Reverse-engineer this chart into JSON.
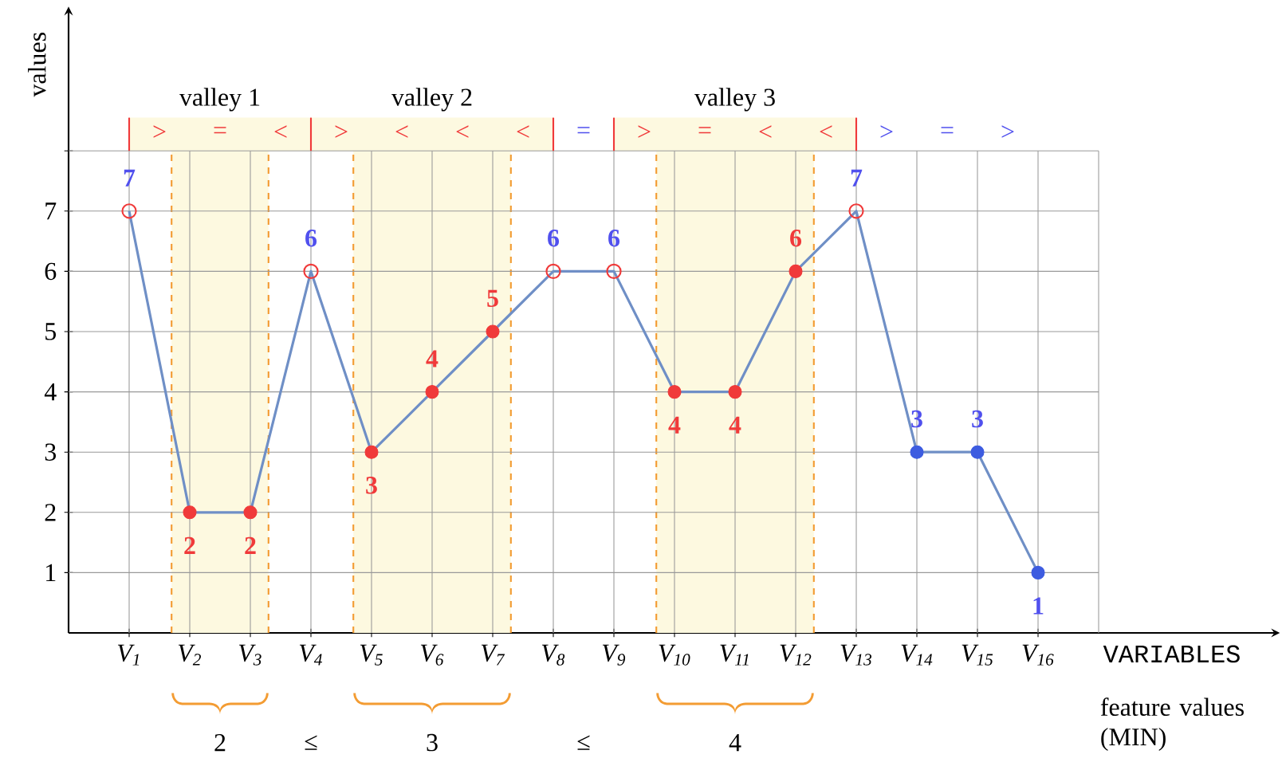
{
  "chart_data": {
    "type": "line",
    "ylabel": "values",
    "xlabel": "VARIABLES",
    "categories": [
      "V$_{1}$",
      "V$_{2}$",
      "V$_{3}$",
      "V$_{4}$",
      "V$_{5}$",
      "V$_{6}$",
      "V$_{7}$",
      "V$_{8}$",
      "V$_{9}$",
      "V$_{10}$",
      "V$_{11}$",
      "V$_{12}$",
      "V$_{13}$",
      "V$_{14}$",
      "V$_{15}$",
      "V$_{16}$"
    ],
    "series": [
      {
        "color": "#6f8fc6",
        "values": [
          7,
          2,
          2,
          6,
          3,
          4,
          5,
          6,
          6,
          4,
          4,
          6,
          7,
          3,
          3,
          1
        ],
        "colors": [
          "#f03a3a",
          "#f03a3a",
          "#f03a3a",
          "#f03a3a",
          "#f03a3a",
          "#f03a3a",
          "#f03a3a",
          "#f03a3a",
          "#f03a3a",
          "#f03a3a",
          "#f03a3a",
          "#f03a3a",
          "#f03a3a",
          "#3d5ce0",
          "#3d5ce0",
          "#3d5ce0"
        ]
      }
    ],
    "marker": "circle",
    "data_labels": true,
    "grid": true,
    "line_style": "solid",
    "ylim": [
      0,
      10.3
    ],
    "yticks": [
      1,
      2,
      3,
      4,
      5,
      6,
      7,
      {
        "value": 8,
        "label": null
      }
    ],
    "bands": [
      {
        "axis": "x",
        "from": "V$_{2}$",
        "to": "V$_{3}$",
        "label": "valley 1",
        "color": "#fdf9e0"
      },
      {
        "axis": "x",
        "from": "V$_{5}$",
        "to": "V$_{7}$",
        "label": "valley 2",
        "color": "#fdf9e0"
      },
      {
        "axis": "x",
        "from": "V$_{10}$",
        "to": "V$_{12}$",
        "label": "valley 3",
        "color": "#fdf9e0"
      }
    ],
    "annotations": [
      ">",
      "=",
      "<",
      ">",
      "<",
      "<",
      "<",
      "=",
      ">",
      "=",
      "<",
      "<",
      ">",
      "=",
      ">",
      "2",
      "≤",
      "3",
      "≤",
      "4",
      "feature values (MIN)"
    ]
  }
}
